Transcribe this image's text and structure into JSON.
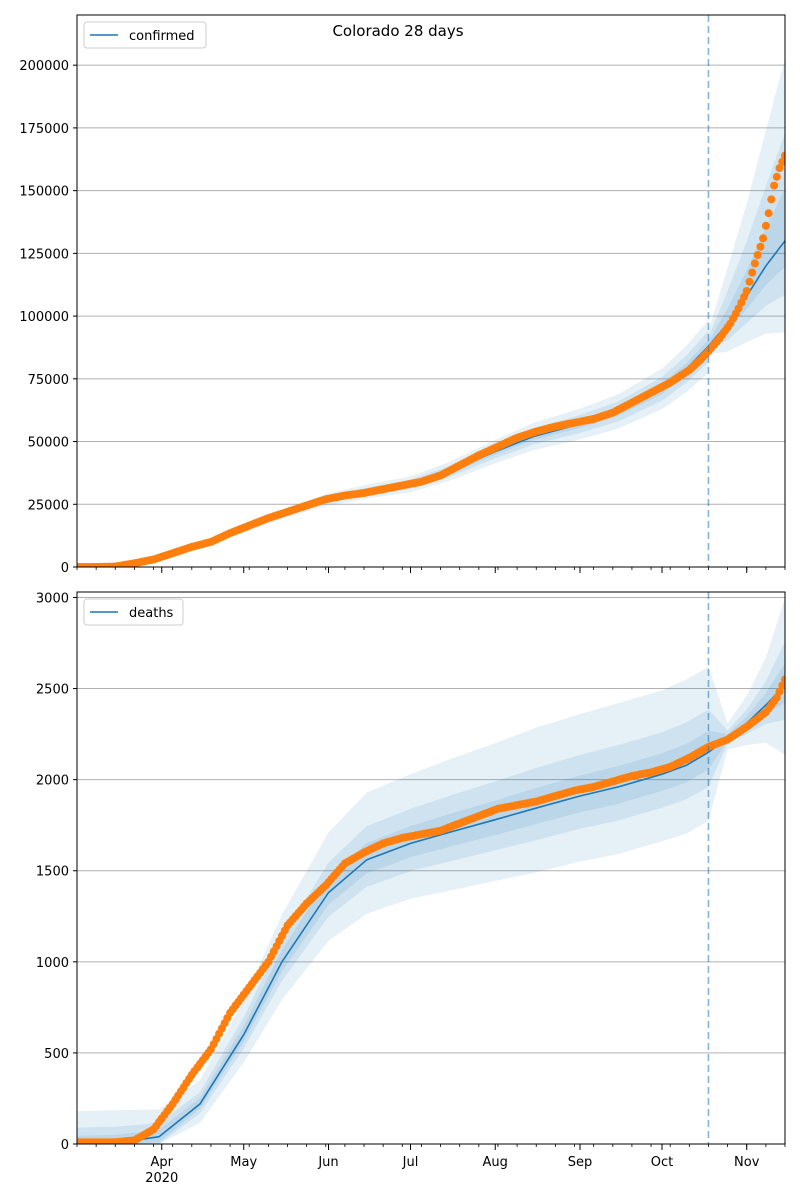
{
  "figure": {
    "suptitle": "Colorado 28 days",
    "colors": {
      "model": "#1f77b4",
      "observed": "#ff7f0e",
      "band": "#1f77b4",
      "grid": "#b0b0b0"
    }
  },
  "x_ticks": {
    "labels": [
      "Apr",
      "May",
      "Jun",
      "Jul",
      "Aug",
      "Sep",
      "Oct",
      "Nov"
    ],
    "year_label": "2020",
    "xlim": [
      "2020-03-01",
      "2020-11-15"
    ],
    "forecast_start": "2020-10-18"
  },
  "chart_data": [
    {
      "type": "line",
      "name": "confirmed",
      "legend_label": "confirmed",
      "legend_position": "upper-left",
      "grid": "y",
      "ylim": [
        0,
        220000
      ],
      "yticks": [
        0,
        25000,
        50000,
        75000,
        100000,
        125000,
        150000,
        175000,
        200000
      ],
      "model_dates": [
        "2020-03-01",
        "2020-03-15",
        "2020-04-01",
        "2020-04-15",
        "2020-05-01",
        "2020-05-15",
        "2020-06-01",
        "2020-06-15",
        "2020-07-01",
        "2020-07-15",
        "2020-08-01",
        "2020-08-15",
        "2020-09-01",
        "2020-09-15",
        "2020-10-01",
        "2020-10-10",
        "2020-10-18",
        "2020-10-25",
        "2020-11-01",
        "2020-11-08",
        "2020-11-15"
      ],
      "model": [
        0,
        300,
        4000,
        9000,
        15000,
        21000,
        27000,
        30000,
        33000,
        38000,
        46000,
        52000,
        57000,
        62000,
        71000,
        79000,
        88000,
        97000,
        108000,
        120000,
        130000
      ],
      "band_widths": [
        [
          0.02,
          0.03,
          0.16
        ],
        [
          0.04,
          0.07,
          0.33
        ],
        [
          0.07,
          0.12,
          0.56
        ]
      ],
      "observed_dates": [
        "2020-03-01",
        "2020-03-08",
        "2020-03-15",
        "2020-03-22",
        "2020-03-29",
        "2020-04-05",
        "2020-04-12",
        "2020-04-19",
        "2020-04-26",
        "2020-05-03",
        "2020-05-10",
        "2020-05-17",
        "2020-05-24",
        "2020-05-31",
        "2020-06-07",
        "2020-06-14",
        "2020-06-21",
        "2020-06-28",
        "2020-07-05",
        "2020-07-12",
        "2020-07-19",
        "2020-07-26",
        "2020-08-02",
        "2020-08-09",
        "2020-08-16",
        "2020-08-23",
        "2020-08-30",
        "2020-09-06",
        "2020-09-13",
        "2020-09-20",
        "2020-09-27",
        "2020-10-04",
        "2020-10-11",
        "2020-10-15",
        "2020-10-18",
        "2020-10-22",
        "2020-10-26",
        "2020-10-29",
        "2020-11-01",
        "2020-11-04",
        "2020-11-07",
        "2020-11-09",
        "2020-11-11",
        "2020-11-13",
        "2020-11-15"
      ],
      "observed": [
        0,
        0,
        200,
        1500,
        3000,
        5500,
        8000,
        10000,
        13500,
        16500,
        19500,
        22000,
        24500,
        27000,
        28500,
        29500,
        31000,
        32500,
        34000,
        36500,
        40500,
        44500,
        48000,
        51500,
        54000,
        56000,
        57500,
        59000,
        61500,
        65500,
        69500,
        73500,
        78500,
        82500,
        86000,
        91000,
        97000,
        103000,
        110000,
        121000,
        131000,
        141000,
        152000,
        159000,
        164000
      ]
    },
    {
      "type": "line",
      "name": "deaths",
      "legend_label": "deaths",
      "legend_position": "upper-left",
      "grid": "y",
      "ylim": [
        0,
        3030
      ],
      "yticks": [
        0,
        500,
        1000,
        1500,
        2000,
        2500,
        3000
      ],
      "xlabel": "",
      "model_dates": [
        "2020-03-01",
        "2020-03-15",
        "2020-03-31",
        "2020-04-15",
        "2020-05-01",
        "2020-05-15",
        "2020-06-01",
        "2020-06-15",
        "2020-07-01",
        "2020-07-15",
        "2020-08-01",
        "2020-08-15",
        "2020-09-01",
        "2020-09-15",
        "2020-10-01",
        "2020-10-10",
        "2020-10-18",
        "2020-10-25",
        "2020-11-01",
        "2020-11-08",
        "2020-11-15"
      ],
      "model": [
        0,
        5,
        40,
        220,
        600,
        1000,
        1380,
        1560,
        1650,
        1710,
        1780,
        1840,
        1910,
        1960,
        2030,
        2080,
        2150,
        2230,
        2310,
        2410,
        2520
      ],
      "band_half": [
        [
          5,
          180
        ],
        [
          15,
          180
        ],
        [
          40,
          150
        ],
        [
          60,
          130
        ],
        [
          80,
          190
        ],
        [
          100,
          260
        ],
        [
          100,
          330
        ],
        [
          100,
          370
        ],
        [
          110,
          380
        ],
        [
          120,
          400
        ],
        [
          130,
          420
        ],
        [
          140,
          440
        ],
        [
          150,
          450
        ],
        [
          160,
          460
        ],
        [
          170,
          460
        ],
        [
          180,
          470
        ],
        [
          180,
          470
        ],
        [
          40,
          80
        ],
        [
          50,
          150
        ],
        [
          70,
          260
        ],
        [
          110,
          480
        ]
      ],
      "band_fractions": [
        0.25,
        0.5,
        1.0
      ],
      "observed_dates": [
        "2020-03-01",
        "2020-03-15",
        "2020-03-22",
        "2020-03-29",
        "2020-04-05",
        "2020-04-12",
        "2020-04-19",
        "2020-04-26",
        "2020-05-03",
        "2020-05-10",
        "2020-05-17",
        "2020-05-24",
        "2020-05-31",
        "2020-06-07",
        "2020-06-14",
        "2020-06-21",
        "2020-06-28",
        "2020-07-05",
        "2020-07-12",
        "2020-07-19",
        "2020-07-26",
        "2020-08-02",
        "2020-08-09",
        "2020-08-16",
        "2020-08-23",
        "2020-08-30",
        "2020-09-06",
        "2020-09-13",
        "2020-09-20",
        "2020-09-27",
        "2020-10-04",
        "2020-10-11",
        "2020-10-18",
        "2020-10-25",
        "2020-11-01",
        "2020-11-08",
        "2020-11-12",
        "2020-11-15"
      ],
      "observed": [
        10,
        10,
        20,
        80,
        220,
        380,
        520,
        720,
        860,
        1000,
        1200,
        1320,
        1420,
        1540,
        1600,
        1650,
        1680,
        1700,
        1720,
        1760,
        1800,
        1840,
        1860,
        1880,
        1910,
        1940,
        1960,
        1990,
        2020,
        2040,
        2070,
        2120,
        2180,
        2220,
        2290,
        2370,
        2450,
        2550
      ]
    }
  ]
}
